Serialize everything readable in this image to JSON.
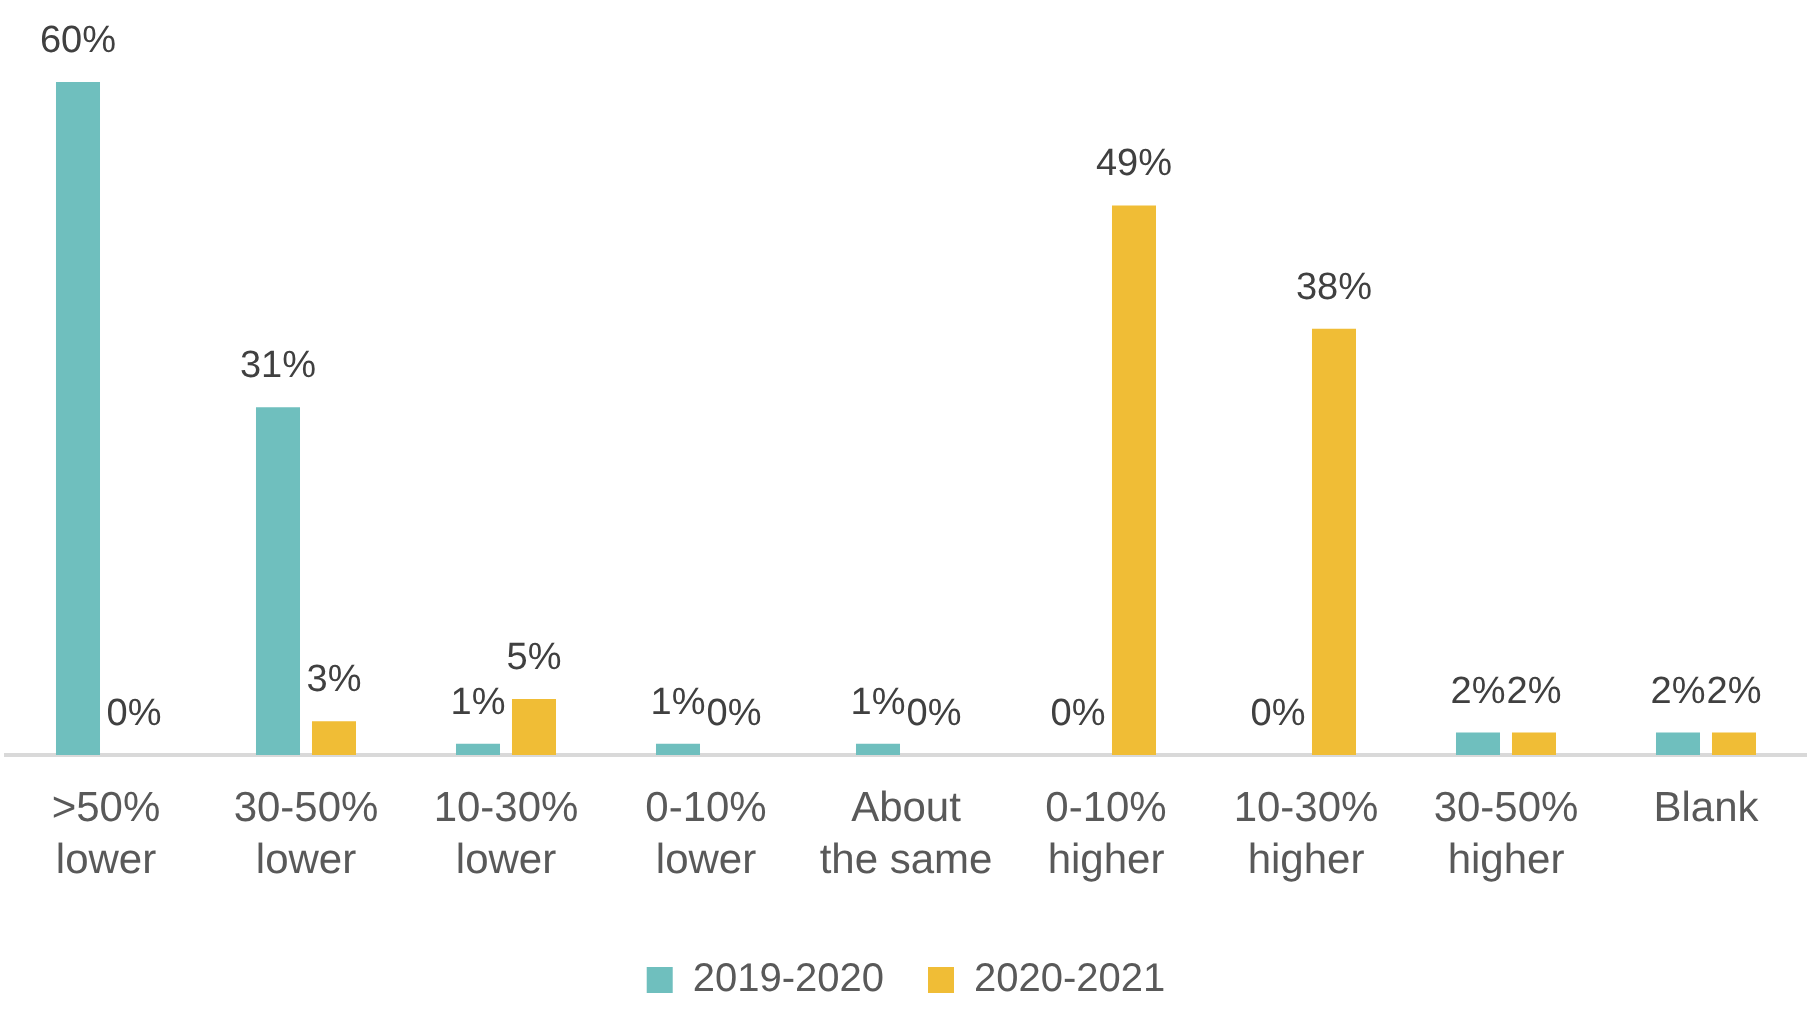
{
  "chart_data": {
    "type": "bar",
    "categories": [
      ">50%\nlower",
      "30-50%\nlower",
      "10-30%\nlower",
      "0-10%\nlower",
      "About\nthe same",
      "0-10%\nhigher",
      "10-30%\nhigher",
      "30-50%\nhigher",
      "Blank"
    ],
    "series": [
      {
        "name": "2019-2020",
        "color": "#6fbfbe",
        "values": [
          60,
          31,
          1,
          1,
          1,
          0,
          0,
          2,
          2
        ],
        "value_labels": [
          "60%",
          "31%",
          "1%",
          "1%",
          "1%",
          "0%",
          "0%",
          "2%",
          "2%"
        ]
      },
      {
        "name": "2020-2021",
        "color": "#f0bd36",
        "values": [
          0,
          3,
          5,
          0,
          0,
          49,
          38,
          2,
          2
        ],
        "value_labels": [
          "0%",
          "3%",
          "5%",
          "0%",
          "0%",
          "49%",
          "38%",
          "2%",
          "2%"
        ]
      }
    ],
    "legend": "bottom",
    "grid": false,
    "tick_labels": "x"
  }
}
